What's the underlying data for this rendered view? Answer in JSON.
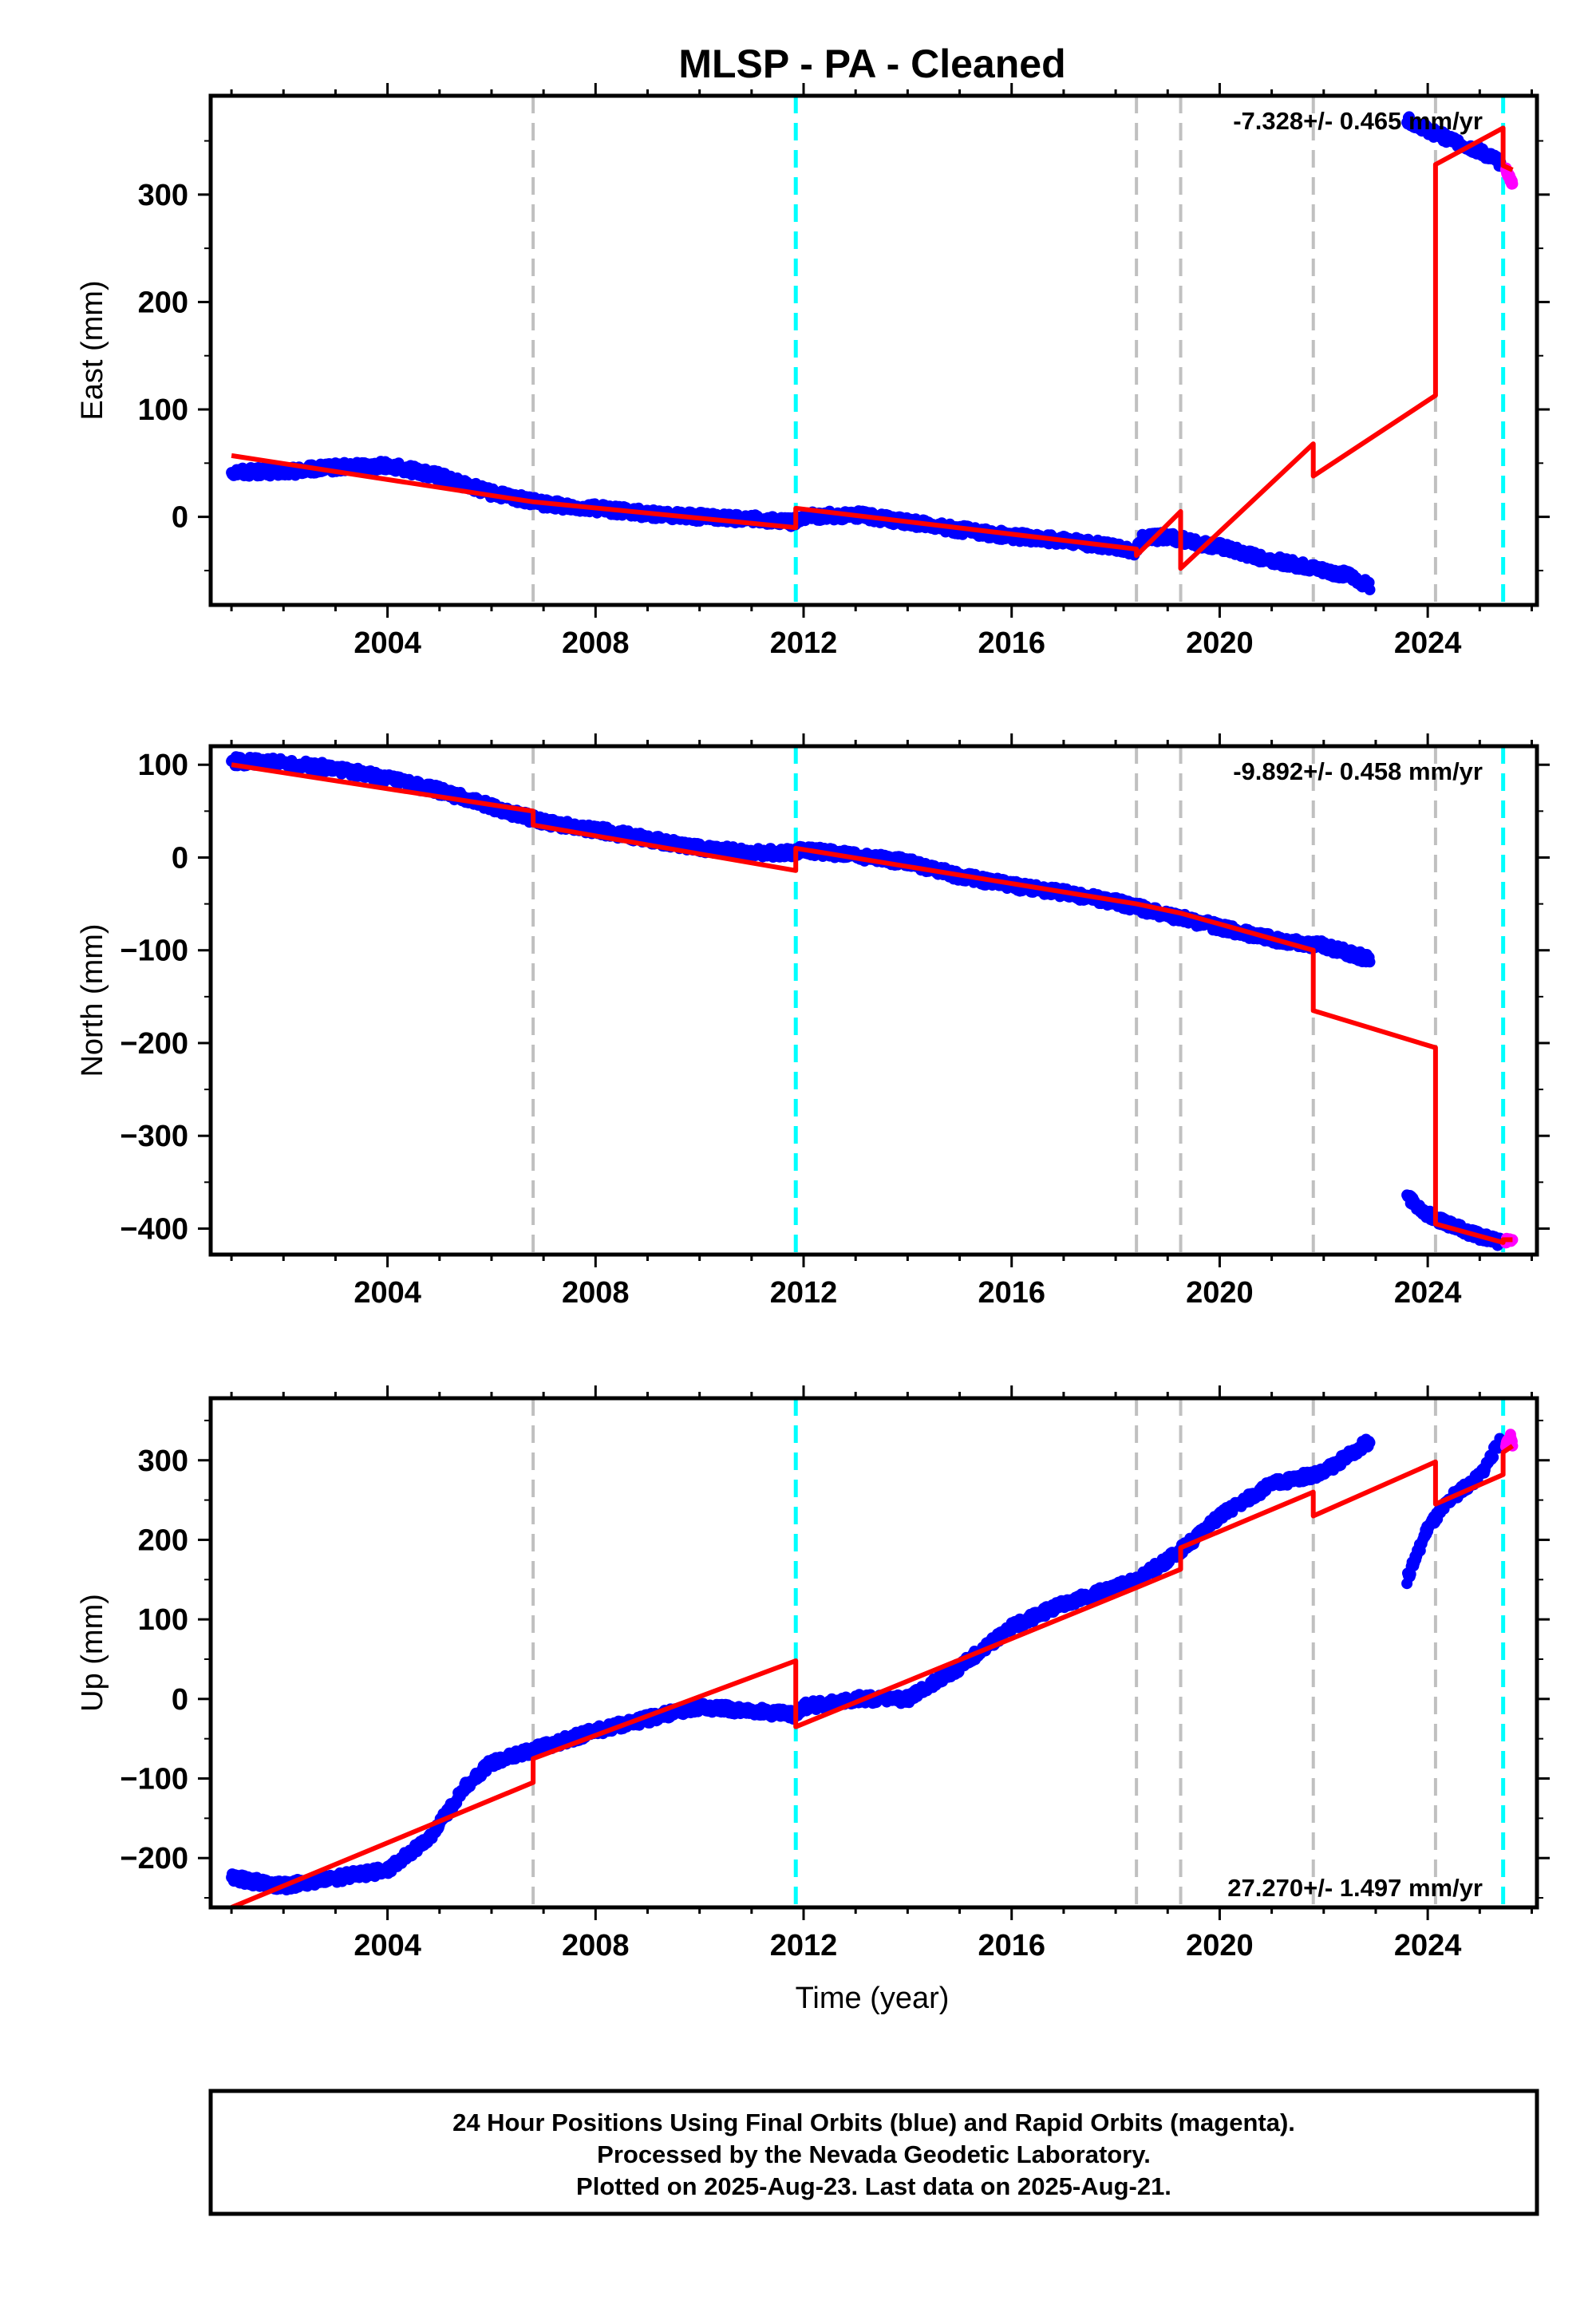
{
  "title": "MLSP  - PA - Cleaned",
  "colors": {
    "final": "#0000ff",
    "rapid": "#ff00ff",
    "model": "#ff0000",
    "equipment_change": "#c0c0c0",
    "earthquake": "#00ffff"
  },
  "xaxis": {
    "label": "Time (year)",
    "range": [
      2000.6,
      2026.1
    ],
    "ticks": [
      "2004",
      "2008",
      "2012",
      "2016",
      "2020",
      "2024"
    ]
  },
  "offsets": [
    {
      "x": 2006.8,
      "kind": "equipment_change"
    },
    {
      "x": 2011.85,
      "kind": "earthquake"
    },
    {
      "x": 2018.4,
      "kind": "equipment_change"
    },
    {
      "x": 2019.25,
      "kind": "equipment_change"
    },
    {
      "x": 2021.8,
      "kind": "equipment_change"
    },
    {
      "x": 2024.15,
      "kind": "equipment_change"
    },
    {
      "x": 2025.45,
      "kind": "earthquake"
    }
  ],
  "footer": {
    "line1": "24 Hour Positions Using Final Orbits (blue) and Rapid Orbits (magenta).",
    "line2": "Processed by the Nevada Geodetic Laboratory.",
    "line3": "Plotted on 2025-Aug-23. Last data on 2025-Aug-21."
  },
  "chart_data": [
    {
      "type": "scatter",
      "ylabel": "East (mm)",
      "ylim": [
        -82,
        392
      ],
      "yticks": [
        "0",
        "100",
        "200",
        "300"
      ],
      "rate_text": "-7.328+/- 0.465 mm/yr",
      "rate_position": "top-right",
      "series": [
        {
          "name": "final",
          "x": [
            2001.0,
            2002.0,
            2003.0,
            2004.0,
            2005.0,
            2006.0,
            2007.0,
            2008.0,
            2009.0,
            2010.0,
            2011.0,
            2011.8,
            2012.0,
            2013.0,
            2014.0,
            2015.0,
            2016.0,
            2017.0,
            2018.0,
            2018.4,
            2018.5,
            2019.0,
            2019.5,
            2020.0,
            2020.5,
            2021.0,
            2021.5,
            2022.0,
            2022.5,
            2022.9,
            2023.6,
            2024.0,
            2024.5,
            2025.0,
            2025.4
          ],
          "y": [
            42,
            42,
            46,
            48,
            38,
            22,
            12,
            8,
            3,
            0,
            -2,
            -5,
            0,
            2,
            -5,
            -12,
            -18,
            -22,
            -28,
            -32,
            -20,
            -18,
            -24,
            -28,
            -35,
            -40,
            -45,
            -50,
            -55,
            -65,
            370,
            360,
            350,
            340,
            330
          ]
        },
        {
          "name": "rapid",
          "x": [
            2025.5,
            2025.55,
            2025.6,
            2025.63
          ],
          "y": [
            325,
            318,
            313,
            310
          ]
        },
        {
          "name": "model",
          "x": [
            2001.0,
            2006.8,
            2006.8,
            2011.85,
            2011.85,
            2018.4,
            2018.4,
            2019.25,
            2019.25,
            2021.8,
            2021.8,
            2024.15,
            2024.15,
            2025.45,
            2025.45,
            2025.63
          ],
          "y": [
            57,
            14,
            14,
            -10,
            8,
            -30,
            -36,
            5,
            -48,
            68,
            38,
            113,
            328,
            362,
            327,
            323
          ]
        }
      ]
    },
    {
      "type": "scatter",
      "ylabel": "North (mm)",
      "ylim": [
        -428,
        120
      ],
      "yticks": [
        "100",
        "0",
        "−100",
        "−200",
        "−300",
        "−400"
      ],
      "rate_text": "-9.892+/- 0.458 mm/yr",
      "rate_position": "top-right",
      "series": [
        {
          "name": "final",
          "x": [
            2001.0,
            2002.0,
            2003.0,
            2004.0,
            2005.0,
            2006.0,
            2007.0,
            2008.0,
            2009.0,
            2010.0,
            2011.0,
            2011.8,
            2012.0,
            2013.0,
            2014.0,
            2015.0,
            2016.0,
            2017.0,
            2018.0,
            2019.0,
            2020.0,
            2021.0,
            2022.0,
            2022.9,
            2023.6,
            2024.0,
            2024.5,
            2025.0,
            2025.4
          ],
          "y": [
            104,
            102,
            96,
            85,
            72,
            55,
            38,
            30,
            20,
            10,
            5,
            5,
            8,
            2,
            -5,
            -20,
            -30,
            -38,
            -48,
            -62,
            -75,
            -88,
            -95,
            -110,
            -365,
            -385,
            -398,
            -408,
            -415
          ]
        },
        {
          "name": "rapid",
          "x": [
            2025.5,
            2025.55,
            2025.6,
            2025.63
          ],
          "y": [
            -413,
            -412,
            -411,
            -412
          ]
        },
        {
          "name": "model",
          "x": [
            2001.0,
            2006.8,
            2006.8,
            2011.85,
            2011.85,
            2018.4,
            2018.4,
            2019.25,
            2019.25,
            2021.8,
            2021.8,
            2024.15,
            2024.15,
            2025.45,
            2025.45,
            2025.63
          ],
          "y": [
            100,
            50,
            35,
            -14,
            10,
            -50,
            -50,
            -60,
            -60,
            -100,
            -165,
            -205,
            -395,
            -415,
            -412,
            -412
          ]
        }
      ]
    },
    {
      "type": "scatter",
      "ylabel": "Up (mm)",
      "ylim": [
        -262,
        378
      ],
      "yticks": [
        "300",
        "200",
        "100",
        "0",
        "−100",
        "−200"
      ],
      "rate_text": "27.270+/- 1.497 mm/yr",
      "rate_position": "bottom-right",
      "series": [
        {
          "name": "final",
          "x": [
            2001.0,
            2002.0,
            2003.0,
            2004.0,
            2004.8,
            2005.5,
            2006.0,
            2007.0,
            2008.0,
            2009.0,
            2010.0,
            2011.0,
            2011.8,
            2012.0,
            2013.0,
            2014.0,
            2015.0,
            2016.0,
            2017.0,
            2018.0,
            2018.4,
            2019.0,
            2019.5,
            2020.0,
            2021.0,
            2022.0,
            2022.9,
            2023.6,
            2024.0,
            2024.5,
            2025.0,
            2025.4
          ],
          "y": [
            -225,
            -235,
            -225,
            -215,
            -175,
            -110,
            -80,
            -60,
            -40,
            -25,
            -10,
            -15,
            -20,
            -10,
            0,
            0,
            40,
            90,
            120,
            140,
            150,
            175,
            200,
            230,
            270,
            285,
            325,
            150,
            215,
            255,
            280,
            325
          ]
        },
        {
          "name": "rapid",
          "x": [
            2025.5,
            2025.55,
            2025.6,
            2025.63
          ],
          "y": [
            320,
            325,
            330,
            318
          ]
        },
        {
          "name": "model",
          "x": [
            2001.0,
            2006.8,
            2006.8,
            2011.85,
            2011.85,
            2018.4,
            2018.4,
            2019.25,
            2019.25,
            2021.8,
            2021.8,
            2024.15,
            2024.15,
            2025.45,
            2025.45,
            2025.63
          ],
          "y": [
            -262,
            -105,
            -75,
            48,
            -35,
            140,
            140,
            163,
            190,
            260,
            230,
            298,
            245,
            282,
            310,
            318
          ]
        }
      ]
    }
  ]
}
